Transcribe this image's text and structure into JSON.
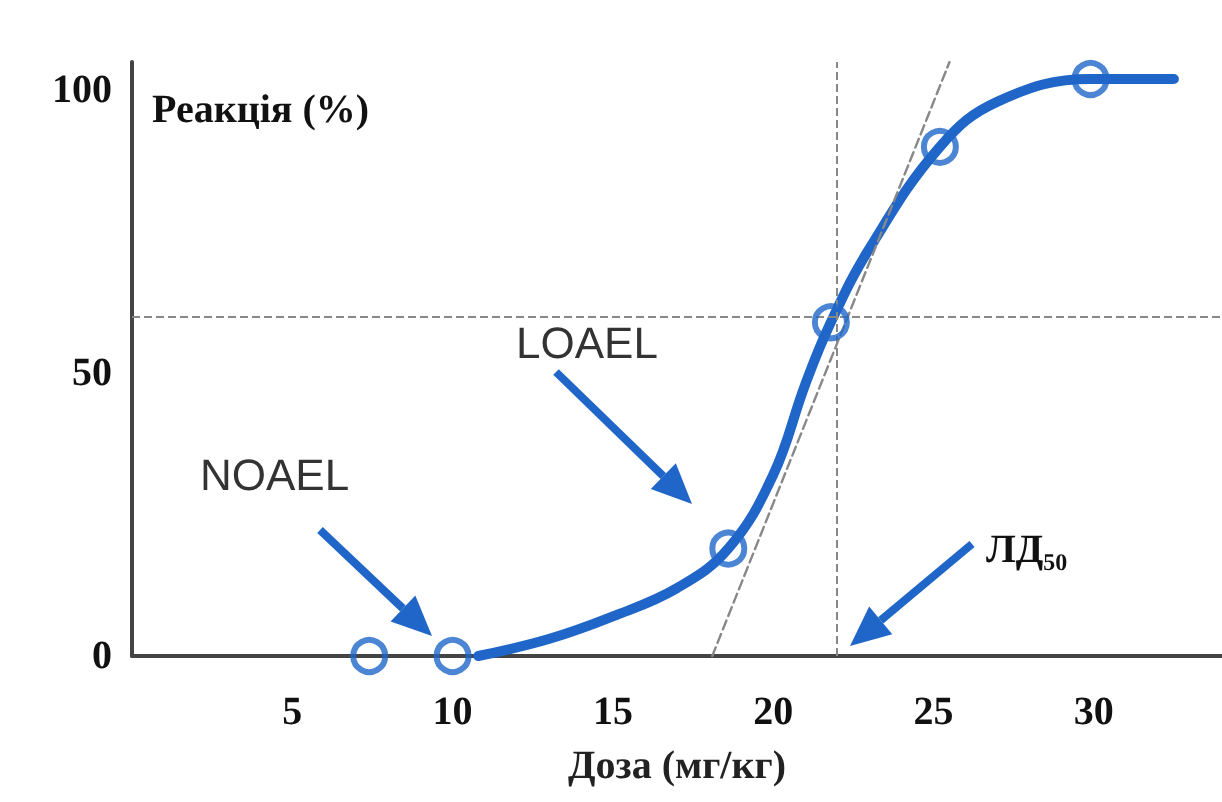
{
  "chart_data": {
    "type": "line",
    "xlabel": "Доза (мг/кг)",
    "ylabel": "Реакція (%)",
    "xlim": [
      0,
      34
    ],
    "xticks": [
      5,
      10,
      15,
      20,
      25,
      30
    ],
    "ylim": [
      0,
      105
    ],
    "yticks": [
      0,
      50,
      100
    ],
    "grid": false,
    "series": [
      {
        "color": "#1f66c8",
        "marker": "none",
        "x": [
          10.8,
          13,
          15,
          17,
          18.6,
          20,
          21,
          21.8,
          23,
          25.2,
          27,
          29.9,
          32.5
        ],
        "values": [
          0,
          3,
          7,
          12,
          19,
          32,
          48,
          59,
          72,
          90,
          98,
          102,
          102
        ]
      },
      {
        "type": "scatter",
        "color": "#1f66c8",
        "marker": "circle",
        "x": [
          7.4,
          10,
          18.6,
          21.8,
          25.2,
          29.9
        ],
        "values": [
          0,
          0,
          19,
          59,
          90,
          102
        ]
      },
      {
        "type": "line",
        "color": "#888888",
        "marker": "none",
        "line_style": "dashed",
        "x": [
          18.1,
          25.5
        ],
        "values": [
          0,
          105
        ]
      }
    ],
    "ref_lines": [
      {
        "axis": "y",
        "value": 60,
        "color": "#888888",
        "line_style": "dashed"
      },
      {
        "axis": "x",
        "value": 22,
        "color": "#888888",
        "line_style": "dashed"
      }
    ],
    "annotations": [
      "NOAEL",
      "LOAEL",
      "ЛД₅₀"
    ]
  }
}
